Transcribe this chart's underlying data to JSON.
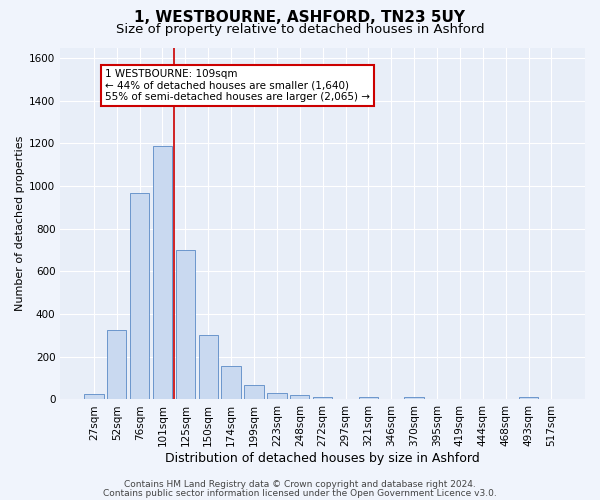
{
  "title_line1": "1, WESTBOURNE, ASHFORD, TN23 5UY",
  "title_line2": "Size of property relative to detached houses in Ashford",
  "xlabel": "Distribution of detached houses by size in Ashford",
  "ylabel": "Number of detached properties",
  "footer_line1": "Contains HM Land Registry data © Crown copyright and database right 2024.",
  "footer_line2": "Contains public sector information licensed under the Open Government Licence v3.0.",
  "annotation_line1": "1 WESTBOURNE: 109sqm",
  "annotation_line2": "← 44% of detached houses are smaller (1,640)",
  "annotation_line3": "55% of semi-detached houses are larger (2,065) →",
  "bar_labels": [
    "27sqm",
    "52sqm",
    "76sqm",
    "101sqm",
    "125sqm",
    "150sqm",
    "174sqm",
    "199sqm",
    "223sqm",
    "248sqm",
    "272sqm",
    "297sqm",
    "321sqm",
    "346sqm",
    "370sqm",
    "395sqm",
    "419sqm",
    "444sqm",
    "468sqm",
    "493sqm",
    "517sqm"
  ],
  "bar_values": [
    25,
    325,
    970,
    1190,
    700,
    300,
    155,
    70,
    30,
    20,
    10,
    0,
    10,
    0,
    10,
    0,
    0,
    0,
    0,
    10,
    0
  ],
  "bar_color": "#c9d9f0",
  "bar_edge_color": "#5a8ac6",
  "background_color": "#e8eef8",
  "grid_color": "#ffffff",
  "fig_background": "#f0f4fc",
  "vline_color": "#cc0000",
  "vline_x_index": 3,
  "ylim": [
    0,
    1650
  ],
  "yticks": [
    0,
    200,
    400,
    600,
    800,
    1000,
    1200,
    1400,
    1600
  ],
  "title_fontsize": 11,
  "subtitle_fontsize": 9.5,
  "xlabel_fontsize": 9,
  "ylabel_fontsize": 8,
  "tick_fontsize": 7.5,
  "footer_fontsize": 6.5,
  "annotation_fontsize": 7.5
}
